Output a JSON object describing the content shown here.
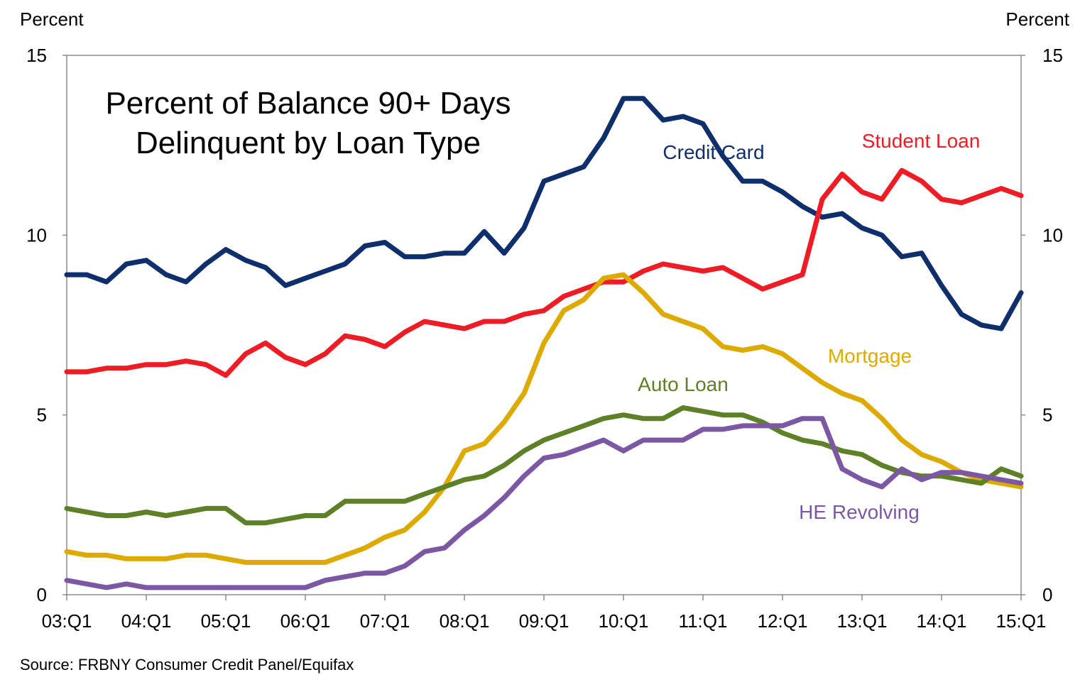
{
  "chart_data": {
    "type": "line",
    "title": "Percent of Balance 90+ Days Delinquent by Loan Type",
    "title_lines": [
      "Percent of Balance 90+ Days",
      "Delinquent by Loan Type"
    ],
    "ylabel_left": "Percent",
    "ylabel_right": "Percent",
    "ylim": [
      0,
      15
    ],
    "yticks": [
      "0",
      "5",
      "10",
      "15"
    ],
    "x_tick_labels": [
      "03:Q1",
      "04:Q1",
      "05:Q1",
      "06:Q1",
      "07:Q1",
      "08:Q1",
      "09:Q1",
      "10:Q1",
      "11:Q1",
      "12:Q1",
      "13:Q1",
      "14:Q1",
      "15:Q1"
    ],
    "source": "Source: FRBNY Consumer Credit Panel/Equifax",
    "series": [
      {
        "name": "Credit Card",
        "label": "Credit Card",
        "color": "#0e2f6b",
        "values": [
          8.9,
          8.9,
          8.7,
          9.2,
          9.3,
          8.9,
          8.7,
          9.2,
          9.6,
          9.3,
          9.1,
          8.6,
          8.8,
          9.0,
          9.2,
          9.7,
          9.8,
          9.4,
          9.4,
          9.5,
          9.5,
          10.1,
          9.5,
          10.2,
          11.5,
          11.7,
          11.9,
          12.7,
          13.8,
          13.8,
          13.2,
          13.3,
          13.1,
          12.2,
          11.5,
          11.5,
          11.2,
          10.8,
          10.5,
          10.6,
          10.2,
          10.0,
          9.4,
          9.5,
          8.6,
          7.8,
          7.5,
          7.4,
          8.4
        ]
      },
      {
        "name": "Student Loan",
        "label": "Student Loan",
        "color": "#ee1c25",
        "values": [
          6.2,
          6.2,
          6.3,
          6.3,
          6.4,
          6.4,
          6.5,
          6.4,
          6.1,
          6.7,
          7.0,
          6.6,
          6.4,
          6.7,
          7.2,
          7.1,
          6.9,
          7.3,
          7.6,
          7.5,
          7.4,
          7.6,
          7.6,
          7.8,
          7.9,
          8.3,
          8.5,
          8.7,
          8.7,
          9.0,
          9.2,
          9.1,
          9.0,
          9.1,
          8.8,
          8.5,
          8.7,
          8.9,
          11.0,
          11.7,
          11.2,
          11.0,
          11.8,
          11.5,
          11.0,
          10.9,
          11.1,
          11.3,
          11.1
        ]
      },
      {
        "name": "Mortgage",
        "label": "Mortgage",
        "color": "#ddaa00",
        "values": [
          1.2,
          1.1,
          1.1,
          1.0,
          1.0,
          1.0,
          1.1,
          1.1,
          1.0,
          0.9,
          0.9,
          0.9,
          0.9,
          0.9,
          1.1,
          1.3,
          1.6,
          1.8,
          2.3,
          3.0,
          4.0,
          4.2,
          4.8,
          5.6,
          7.0,
          7.9,
          8.2,
          8.8,
          8.9,
          8.4,
          7.8,
          7.6,
          7.4,
          6.9,
          6.8,
          6.9,
          6.7,
          6.3,
          5.9,
          5.6,
          5.4,
          4.9,
          4.3,
          3.9,
          3.7,
          3.4,
          3.2,
          3.1,
          3.0
        ]
      },
      {
        "name": "Auto Loan",
        "label": "Auto Loan",
        "color": "#5e8128",
        "values": [
          2.4,
          2.3,
          2.2,
          2.2,
          2.3,
          2.2,
          2.3,
          2.4,
          2.4,
          2.0,
          2.0,
          2.1,
          2.2,
          2.2,
          2.6,
          2.6,
          2.6,
          2.6,
          2.8,
          3.0,
          3.2,
          3.3,
          3.6,
          4.0,
          4.3,
          4.5,
          4.7,
          4.9,
          5.0,
          4.9,
          4.9,
          5.2,
          5.1,
          5.0,
          5.0,
          4.8,
          4.5,
          4.3,
          4.2,
          4.0,
          3.9,
          3.6,
          3.4,
          3.3,
          3.3,
          3.2,
          3.1,
          3.5,
          3.3
        ]
      },
      {
        "name": "HE Revolving",
        "label": "HE Revolving",
        "color": "#7c58a4",
        "values": [
          0.4,
          0.3,
          0.2,
          0.3,
          0.2,
          0.2,
          0.2,
          0.2,
          0.2,
          0.2,
          0.2,
          0.2,
          0.2,
          0.4,
          0.5,
          0.6,
          0.6,
          0.8,
          1.2,
          1.3,
          1.8,
          2.2,
          2.7,
          3.3,
          3.8,
          3.9,
          4.1,
          4.3,
          4.0,
          4.3,
          4.3,
          4.3,
          4.6,
          4.6,
          4.7,
          4.7,
          4.7,
          4.9,
          4.9,
          3.5,
          3.2,
          3.0,
          3.5,
          3.2,
          3.4,
          3.4,
          3.3,
          3.2,
          3.1
        ]
      }
    ]
  }
}
